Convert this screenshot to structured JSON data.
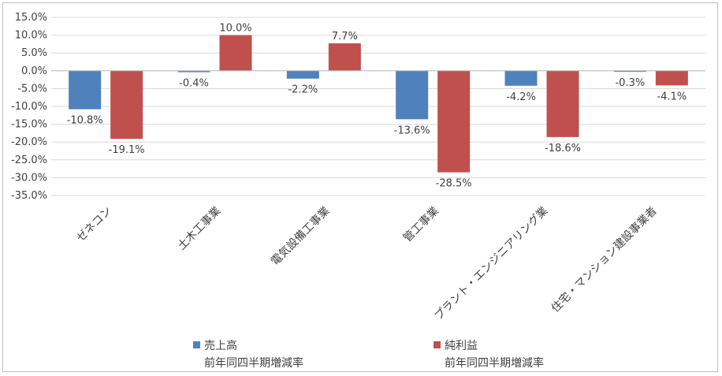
{
  "chart_data": {
    "type": "bar",
    "categories": [
      "ゼネコン",
      "土木工事業",
      "電気設備工事業",
      "管工事業",
      "プラント・エンジニアリング業",
      "住宅・マンション建設事業者"
    ],
    "series": [
      {
        "name_lines": [
          "売上高",
          "前年同四半期増減率"
        ],
        "color": "#4f81bd",
        "values": [
          -10.8,
          -0.4,
          -2.2,
          -13.6,
          -4.2,
          -0.3
        ],
        "labels": [
          "-10.8%",
          "-0.4%",
          "-2.2%",
          "-13.6%",
          "-4.2%",
          "-0.3%"
        ]
      },
      {
        "name_lines": [
          "純利益",
          "前年同四半期増減率"
        ],
        "color": "#c0504d",
        "values": [
          -19.1,
          10.0,
          7.7,
          -28.5,
          -18.6,
          -4.1
        ],
        "labels": [
          "-19.1%",
          "10.0%",
          "7.7%",
          "-28.5%",
          "-18.6%",
          "-4.1%"
        ]
      }
    ],
    "ylim": [
      -35,
      15
    ],
    "yticks": [
      15,
      10,
      5,
      0,
      -5,
      -10,
      -15,
      -20,
      -25,
      -30,
      -35
    ],
    "ytick_labels": [
      "15.0%",
      "10.0%",
      "5.0%",
      "0.0%",
      "-5.0%",
      "-10.0%",
      "-15.0%",
      "-20.0%",
      "-25.0%",
      "-30.0%",
      "-35.0%"
    ],
    "grid": true,
    "legend_position": "bottom"
  }
}
